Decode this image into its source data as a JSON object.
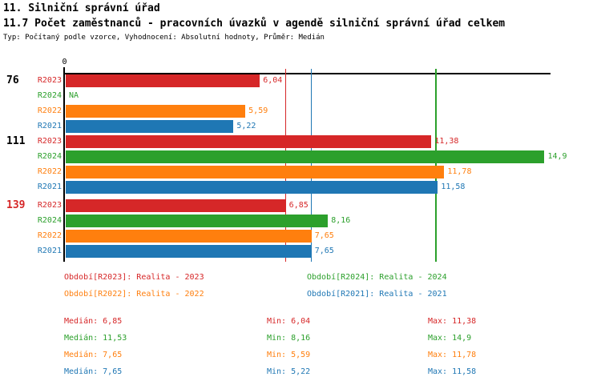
{
  "header": {
    "title1": "11. Silniční správní úřad",
    "title2": "11.7 Počet zaměstnanců - pracovních úvazků v agendě silniční správní úřad celkem",
    "subtitle": "Typ: Počítaný podle vzorce, Vyhodnocení: Absolutní hodnoty, Průměr: Medián"
  },
  "colors": {
    "R2023": "#d62728",
    "R2024": "#2ca02c",
    "R2022": "#ff7f0e",
    "R2021": "#1f77b4",
    "axis": "#000000",
    "background": "#ffffff"
  },
  "chart_data": {
    "type": "bar",
    "orientation": "horizontal",
    "axis_origin_label": "0",
    "xlim": [
      0,
      15.1
    ],
    "grid": false,
    "categories": [
      "76",
      "111",
      "139"
    ],
    "category_label_colors": [
      "#000000",
      "#000000",
      "#d62728"
    ],
    "series_order": [
      "R2023",
      "R2024",
      "R2022",
      "R2021"
    ],
    "groups": [
      {
        "label": "76",
        "label_color": "#000000",
        "bars": [
          {
            "series": "R2023",
            "value": 6.04,
            "display": "6,04",
            "color": "#d62728"
          },
          {
            "series": "R2024",
            "value": null,
            "display": "NA",
            "color": "#2ca02c"
          },
          {
            "series": "R2022",
            "value": 5.59,
            "display": "5,59",
            "color": "#ff7f0e"
          },
          {
            "series": "R2021",
            "value": 5.22,
            "display": "5,22",
            "color": "#1f77b4"
          }
        ]
      },
      {
        "label": "111",
        "label_color": "#000000",
        "bars": [
          {
            "series": "R2023",
            "value": 11.38,
            "display": "11,38",
            "color": "#d62728"
          },
          {
            "series": "R2024",
            "value": 14.9,
            "display": "14,9",
            "color": "#2ca02c"
          },
          {
            "series": "R2022",
            "value": 11.78,
            "display": "11,78",
            "color": "#ff7f0e"
          },
          {
            "series": "R2021",
            "value": 11.58,
            "display": "11,58",
            "color": "#1f77b4"
          }
        ]
      },
      {
        "label": "139",
        "label_color": "#d62728",
        "bars": [
          {
            "series": "R2023",
            "value": 6.85,
            "display": "6,85",
            "color": "#d62728"
          },
          {
            "series": "R2024",
            "value": 8.16,
            "display": "8,16",
            "color": "#2ca02c"
          },
          {
            "series": "R2022",
            "value": 7.65,
            "display": "7,65",
            "color": "#ff7f0e"
          },
          {
            "series": "R2021",
            "value": 7.65,
            "display": "7,65",
            "color": "#1f77b4"
          }
        ]
      }
    ],
    "median_lines": [
      {
        "series": "R2023",
        "value": 6.85,
        "color": "#d62728"
      },
      {
        "series": "R2022",
        "value": 7.65,
        "color": "#ff7f0e"
      },
      {
        "series": "R2021",
        "value": 7.65,
        "color": "#1f77b4"
      },
      {
        "series": "R2024",
        "value": 11.53,
        "color": "#2ca02c"
      }
    ]
  },
  "legend": {
    "items": [
      {
        "label": "Období[R2023]: Realita - 2023",
        "color": "#d62728",
        "row": 0,
        "col": 0
      },
      {
        "label": "Období[R2024]: Realita - 2024",
        "color": "#2ca02c",
        "row": 0,
        "col": 1
      },
      {
        "label": "Období[R2022]: Realita - 2022",
        "color": "#ff7f0e",
        "row": 1,
        "col": 0
      },
      {
        "label": "Období[R2021]: Realita - 2021",
        "color": "#1f77b4",
        "row": 1,
        "col": 1
      }
    ]
  },
  "stats": {
    "rows": [
      {
        "series": "R2023",
        "color": "#d62728",
        "median": "Medián: 6,85",
        "min": "Min: 6,04",
        "max": "Max: 11,38"
      },
      {
        "series": "R2024",
        "color": "#2ca02c",
        "median": "Medián: 11,53",
        "min": "Min: 8,16",
        "max": "Max: 14,9"
      },
      {
        "series": "R2022",
        "color": "#ff7f0e",
        "median": "Medián: 7,65",
        "min": "Min: 5,59",
        "max": "Max: 11,78"
      },
      {
        "series": "R2021",
        "color": "#1f77b4",
        "median": "Medián: 7,65",
        "min": "Min: 5,22",
        "max": "Max: 11,58"
      }
    ]
  }
}
